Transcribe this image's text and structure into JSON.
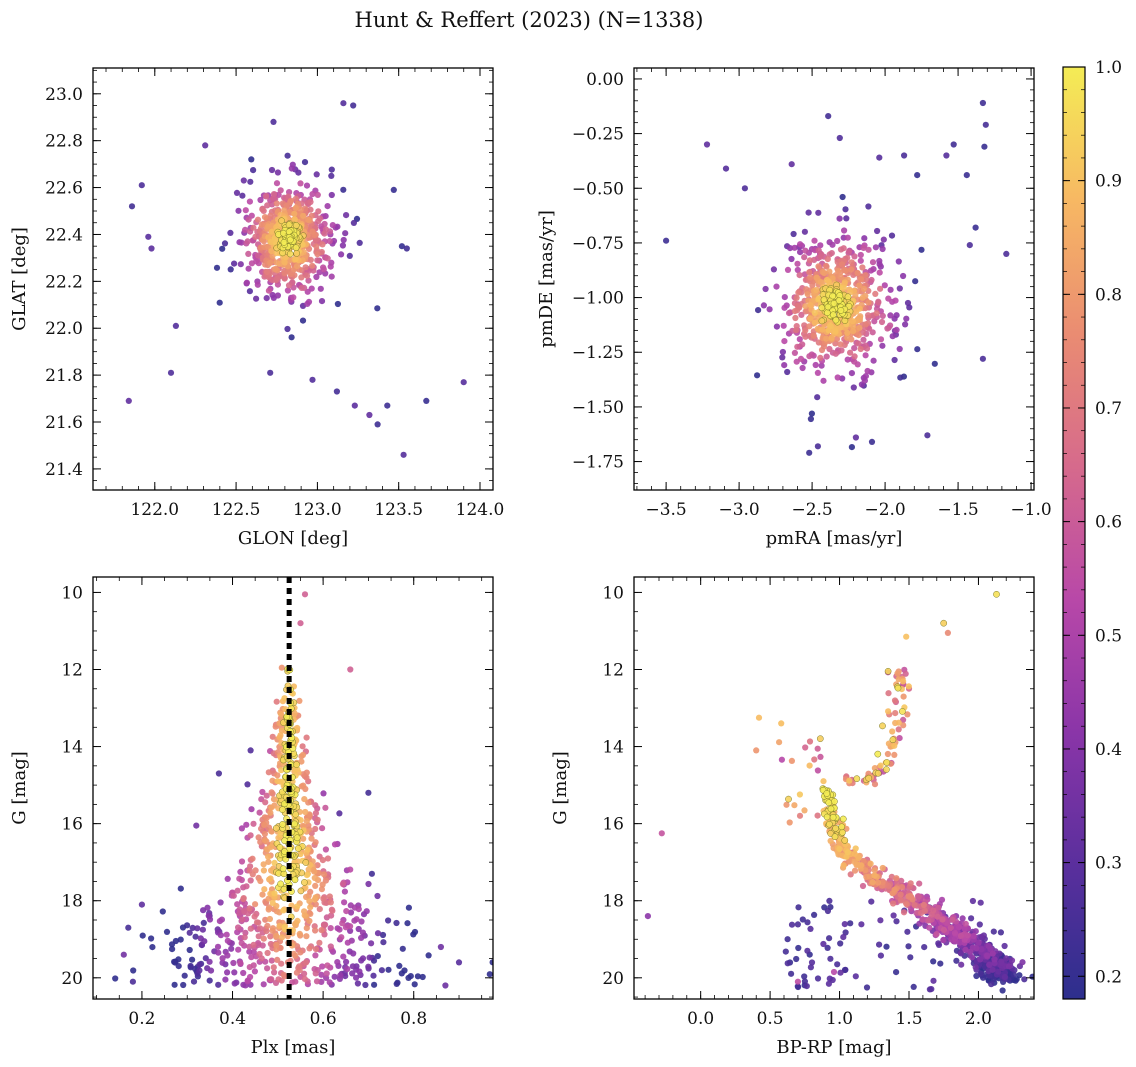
{
  "figure": {
    "title": "Hunt & Reffert (2023) (N=1338)"
  },
  "colormap": {
    "name": "plasma",
    "stops": [
      "#2d2f8d",
      "#5a2f9d",
      "#8a35a8",
      "#b848a8",
      "#d66a8c",
      "#ea8c72",
      "#f7b863",
      "#f4ec55"
    ],
    "range": [
      0.18,
      1.0
    ],
    "ticks": [
      0.2,
      0.3,
      0.4,
      0.5,
      0.6,
      0.7,
      0.8,
      0.9,
      1.0
    ],
    "tick_labels": [
      "0.2",
      "0.3",
      "0.4",
      "0.5",
      "0.6",
      "0.7",
      "0.8",
      "0.9",
      "1.0"
    ]
  },
  "chart_data": [
    {
      "id": "sky",
      "type": "scatter",
      "xlabel": "GLON [deg]",
      "ylabel": "GLAT [deg]",
      "xlim": [
        121.62,
        124.08
      ],
      "ylim": [
        21.31,
        23.11
      ],
      "invert_y": false,
      "xticks": [
        122.0,
        122.5,
        123.0,
        123.5,
        124.0
      ],
      "xtick_labels": [
        "122.0",
        "122.5",
        "123.0",
        "123.5",
        "124.0"
      ],
      "yticks": [
        21.4,
        21.6,
        21.8,
        22.0,
        22.2,
        22.4,
        22.6,
        22.8,
        23.0
      ],
      "ytick_labels": [
        "21.4",
        "21.6",
        "21.8",
        "22.0",
        "22.2",
        "22.4",
        "22.6",
        "22.8",
        "23.0"
      ],
      "x_minor_step": 0.1,
      "y_minor_step": 0.05,
      "cluster_center": [
        122.82,
        22.38
      ],
      "cluster_spread": [
        0.17,
        0.15
      ],
      "outliers": [
        [
          121.84,
          21.69
        ],
        [
          121.86,
          22.52
        ],
        [
          121.92,
          22.61
        ],
        [
          121.96,
          22.39
        ],
        [
          121.98,
          22.34
        ],
        [
          122.1,
          21.81
        ],
        [
          122.13,
          22.01
        ],
        [
          122.71,
          21.81
        ],
        [
          122.97,
          21.78
        ],
        [
          123.12,
          21.73
        ],
        [
          123.23,
          21.67
        ],
        [
          123.32,
          21.63
        ],
        [
          123.37,
          21.59
        ],
        [
          123.43,
          21.67
        ],
        [
          123.53,
          21.46
        ],
        [
          123.67,
          21.69
        ],
        [
          123.9,
          21.77
        ],
        [
          123.16,
          22.96
        ],
        [
          123.22,
          22.95
        ],
        [
          122.73,
          22.88
        ],
        [
          123.52,
          22.35
        ],
        [
          123.55,
          22.34
        ],
        [
          123.47,
          22.59
        ],
        [
          122.31,
          22.78
        ]
      ]
    },
    {
      "id": "pm",
      "type": "scatter",
      "xlabel": "pmRA [mas/yr]",
      "ylabel": "pmDE [mas/yr]",
      "xlim": [
        -3.72,
        -0.98
      ],
      "ylim": [
        -1.88,
        0.05
      ],
      "invert_y": false,
      "xticks": [
        -3.5,
        -3.0,
        -2.5,
        -2.0,
        -1.5,
        -1.0
      ],
      "xtick_labels": [
        "−3.5",
        "−3.0",
        "−2.5",
        "−2.0",
        "−1.5",
        "−1.0"
      ],
      "yticks": [
        -1.75,
        -1.5,
        -1.25,
        -1.0,
        -0.75,
        -0.5,
        -0.25,
        0.0
      ],
      "ytick_labels": [
        "−1.75",
        "−1.50",
        "−1.25",
        "−1.00",
        "−0.75",
        "−0.50",
        "−0.25",
        "0.00"
      ],
      "x_minor_step": 0.1,
      "y_minor_step": 0.05,
      "cluster_center": [
        -2.34,
        -1.04
      ],
      "cluster_spread": [
        0.24,
        0.19
      ],
      "outliers": [
        [
          -3.5,
          -0.74
        ],
        [
          -3.22,
          -0.3
        ],
        [
          -3.09,
          -0.41
        ],
        [
          -2.96,
          -0.5
        ],
        [
          -2.39,
          -0.17
        ],
        [
          -2.31,
          -0.27
        ],
        [
          -2.04,
          -0.36
        ],
        [
          -1.87,
          -0.35
        ],
        [
          -1.78,
          -0.44
        ],
        [
          -1.58,
          -0.35
        ],
        [
          -1.53,
          -0.3
        ],
        [
          -1.33,
          -0.11
        ],
        [
          -1.31,
          -0.21
        ],
        [
          -1.32,
          -0.31
        ],
        [
          -1.17,
          -0.8
        ],
        [
          -1.44,
          -0.44
        ],
        [
          -1.33,
          -1.28
        ],
        [
          -1.38,
          -0.68
        ],
        [
          -1.71,
          -1.63
        ],
        [
          -2.52,
          -1.71
        ],
        [
          -2.46,
          -1.68
        ],
        [
          -2.09,
          -1.66
        ],
        [
          -2.2,
          -1.64
        ],
        [
          -1.42,
          -0.76
        ],
        [
          -2.64,
          -0.39
        ]
      ]
    },
    {
      "id": "gplx",
      "type": "scatter",
      "xlabel": "Plx [mas]",
      "ylabel": "G [mag]",
      "xlim": [
        0.092,
        0.975
      ],
      "ylim": [
        9.6,
        20.55
      ],
      "invert_y": true,
      "xticks": [
        0.2,
        0.4,
        0.6,
        0.8
      ],
      "xtick_labels": [
        "0.2",
        "0.4",
        "0.6",
        "0.8"
      ],
      "yticks": [
        10,
        12,
        14,
        16,
        18,
        20
      ],
      "ytick_labels": [
        "10",
        "12",
        "14",
        "16",
        "18",
        "20"
      ],
      "x_minor_step": 0.05,
      "y_minor_step": 0.5,
      "vline": 0.525,
      "outliers": [
        [
          0.56,
          10.05
        ],
        [
          0.55,
          10.8
        ],
        [
          0.66,
          12.0
        ],
        [
          0.44,
          14.1
        ],
        [
          0.37,
          14.7
        ],
        [
          0.7,
          15.2
        ],
        [
          0.32,
          16.05
        ],
        [
          0.9,
          19.6
        ],
        [
          0.86,
          19.2
        ],
        [
          0.87,
          20.2
        ],
        [
          0.17,
          18.7
        ],
        [
          0.18,
          20.1
        ],
        [
          0.2,
          18.1
        ],
        [
          0.16,
          19.4
        ]
      ]
    },
    {
      "id": "cmd",
      "type": "scatter",
      "xlabel": "BP-RP [mag]",
      "ylabel": "G [mag]",
      "xlim": [
        -0.48,
        2.4
      ],
      "ylim": [
        9.6,
        20.55
      ],
      "invert_y": true,
      "xticks": [
        0.0,
        0.5,
        1.0,
        1.5,
        2.0
      ],
      "xtick_labels": [
        "0.0",
        "0.5",
        "1.0",
        "1.5",
        "2.0"
      ],
      "yticks": [
        10,
        12,
        14,
        16,
        18,
        20
      ],
      "ytick_labels": [
        "10",
        "12",
        "14",
        "16",
        "18",
        "20"
      ],
      "x_minor_step": 0.1,
      "y_minor_step": 0.5,
      "main_sequence": [
        [
          0.9,
          15.0
        ],
        [
          0.95,
          16.0
        ],
        [
          1.05,
          16.8
        ],
        [
          1.3,
          17.5
        ],
        [
          1.55,
          18.0
        ],
        [
          1.75,
          18.6
        ],
        [
          1.95,
          19.1
        ],
        [
          2.1,
          19.6
        ],
        [
          2.2,
          20.0
        ]
      ],
      "red_giant_branch": [
        [
          1.0,
          14.85
        ],
        [
          1.2,
          14.9
        ],
        [
          1.33,
          14.5
        ],
        [
          1.38,
          13.8
        ],
        [
          1.42,
          13.0
        ],
        [
          1.45,
          12.3
        ],
        [
          1.35,
          11.8
        ]
      ],
      "outliers": [
        [
          2.13,
          10.05
        ],
        [
          1.75,
          10.8
        ],
        [
          1.78,
          11.05
        ],
        [
          1.48,
          11.15
        ],
        [
          0.42,
          13.25
        ],
        [
          0.58,
          13.4
        ],
        [
          0.4,
          14.1
        ],
        [
          -0.28,
          16.25
        ],
        [
          -0.38,
          18.4
        ],
        [
          0.7,
          20.1
        ],
        [
          0.96,
          19.85
        ]
      ]
    }
  ]
}
